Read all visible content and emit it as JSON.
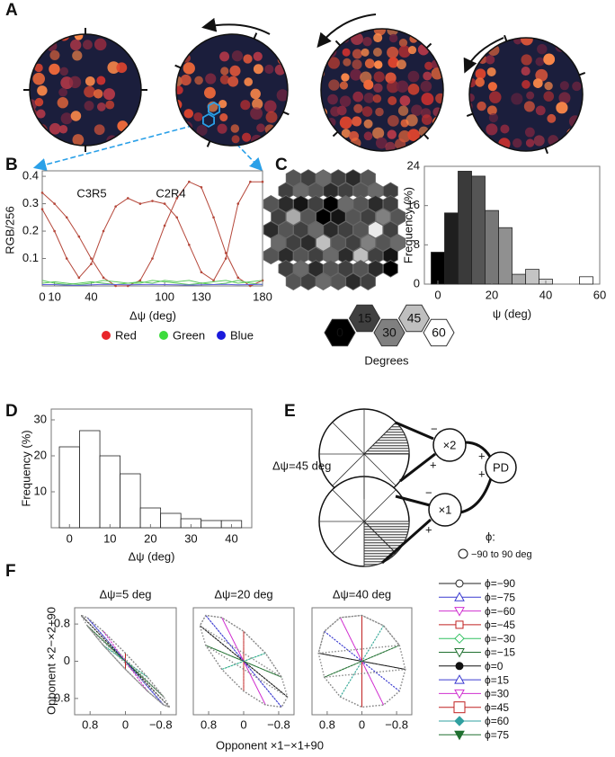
{
  "panel_labels": [
    "A",
    "B",
    "C",
    "D",
    "E",
    "F"
  ],
  "chart_data": [
    {
      "type": "line",
      "ylabel": "RGB/256",
      "xlabel": "Δψ (deg)",
      "xlim": [
        0,
        180
      ],
      "ylim": [
        0,
        0.42
      ],
      "xticks": [
        0,
        10,
        40,
        100,
        130,
        180
      ],
      "yticks": [
        0.1,
        0.2,
        0.3,
        0.4
      ],
      "x": [
        0,
        10,
        20,
        30,
        40,
        50,
        60,
        70,
        80,
        90,
        100,
        110,
        120,
        130,
        140,
        150,
        160,
        170,
        180
      ],
      "series": [
        {
          "name": "Red",
          "color": "#e8262a",
          "line_color": "#b5473a",
          "curves": [
            {
              "label": "C3R5",
              "values": [
                0.28,
                0.2,
                0.1,
                0.03,
                0.08,
                0.2,
                0.29,
                0.32,
                0.3,
                0.31,
                0.3,
                0.25,
                0.15,
                0.05,
                0.02,
                0.1,
                0.3,
                0.38,
                0.38
              ]
            },
            {
              "label": "C2R4",
              "values": [
                0.34,
                0.3,
                0.25,
                0.18,
                0.1,
                0.03,
                0.0,
                0.0,
                0.02,
                0.1,
                0.22,
                0.32,
                0.38,
                0.36,
                0.25,
                0.12,
                0.03,
                0.0,
                0.02
              ]
            }
          ]
        },
        {
          "name": "Green",
          "color": "#3ddc3d",
          "line_color": "#5cc95c",
          "curves": [
            {
              "values": [
                0.01,
                0.015,
                0.01,
                0.005,
                0.01,
                0.02,
                0.015,
                0.01,
                0.01,
                0.02,
                0.015,
                0.01,
                0.005,
                0.01,
                0.015,
                0.02,
                0.01,
                0.015,
                0.02
              ]
            },
            {
              "values": [
                0.02,
                0.01,
                0.005,
                0.01,
                0.015,
                0.01,
                0.005,
                0.01,
                0.015,
                0.01,
                0.02,
                0.015,
                0.02,
                0.01,
                0.005,
                0.01,
                0.02,
                0.01,
                0.005
              ]
            }
          ]
        },
        {
          "name": "Blue",
          "color": "#1a1adc",
          "line_color": "#6060e0",
          "curves": [
            {
              "values": [
                0.005,
                0.005,
                0.003,
                0.002,
                0.004,
                0.006,
                0.005,
                0.004,
                0.005,
                0.006,
                0.005,
                0.004,
                0.003,
                0.004,
                0.005,
                0.006,
                0.004,
                0.005,
                0.006
              ]
            }
          ]
        }
      ]
    },
    {
      "type": "hexmap",
      "legend_title": "Degrees",
      "scale": [
        0,
        15,
        30,
        45,
        60
      ],
      "rows": [
        [
          20,
          15,
          25,
          15,
          10,
          20
        ],
        [
          15,
          25,
          20,
          10,
          15,
          20,
          25,
          15
        ],
        [
          20,
          10,
          5,
          15,
          0,
          25,
          20,
          10,
          15
        ],
        [
          15,
          40,
          20,
          0,
          5,
          20,
          15,
          30,
          20
        ],
        [
          10,
          20,
          15,
          25,
          10,
          15,
          20,
          55,
          15
        ],
        [
          25,
          15,
          10,
          45,
          20,
          15,
          30,
          20,
          25
        ],
        [
          20,
          10,
          20,
          15,
          25,
          10,
          45,
          15,
          5
        ],
        [
          15,
          25,
          10,
          20,
          15,
          20,
          10,
          0
        ],
        [
          20,
          15,
          25,
          20,
          10,
          15
        ]
      ]
    },
    {
      "type": "histogram",
      "ylabel": "Frequency (%)",
      "xlabel": "ψ (deg)",
      "bins": [
        -2.5,
        2.5,
        7.5,
        12.5,
        17.5,
        22.5,
        27.5,
        32.5,
        37.5,
        42.5,
        47.5,
        52.5,
        57.5
      ],
      "values": [
        6.5,
        14.5,
        23,
        22,
        15,
        11.5,
        2,
        3,
        1,
        0,
        0,
        1.5
      ],
      "colors": [
        "#000000",
        "#1e1e1e",
        "#3a3a3a",
        "#555555",
        "#777777",
        "#909090",
        "#aaaaaa",
        "#c4c4c4",
        "#dcdcdc",
        "#eeeeee",
        "#f5f5f5",
        "#ffffff"
      ],
      "xlim": [
        -5,
        60
      ],
      "ylim": [
        0,
        24
      ],
      "xticks": [
        0,
        20,
        40,
        60
      ],
      "yticks": [
        0,
        8,
        16,
        24
      ]
    },
    {
      "type": "histogram",
      "ylabel": "Frequency (%)",
      "xlabel": "Δψ (deg)",
      "bins": [
        -2.5,
        2.5,
        7.5,
        12.5,
        17.5,
        22.5,
        27.5,
        32.5,
        37.5,
        42.5
      ],
      "values": [
        22.5,
        27,
        20,
        15,
        5.5,
        4,
        2.5,
        2,
        2
      ],
      "color": "#ffffff",
      "xlim": [
        -4.5,
        45
      ],
      "ylim": [
        0,
        33
      ],
      "xticks": [
        0,
        10,
        20,
        30,
        40
      ],
      "yticks": [
        10,
        20,
        30
      ]
    },
    {
      "type": "radial",
      "ylabel": "Opponent ×2−×2+90",
      "xlabel": "Opponent ×1−×1+90",
      "xlim": [
        1.15,
        -1.15
      ],
      "ylim": [
        -1.15,
        1.15
      ],
      "xticks": [
        0.8,
        0,
        {
          "value": -0.8,
          "label": "−0.8"
        }
      ],
      "yticks": [
        0.8,
        0,
        {
          "value": -0.8,
          "label": "−0.8"
        }
      ],
      "subplots": [
        {
          "title": "Δψ=5 deg"
        },
        {
          "title": "Δψ=20 deg"
        },
        {
          "title": "Δψ=40 deg"
        }
      ],
      "series": [
        {
          "name": "ϕ=−90",
          "color": "#222222",
          "marker": "circle",
          "ends": [
            [
              -1,
              -0.985
            ],
            [
              -1,
              -0.766
            ],
            [
              -1,
              -0.174
            ]
          ]
        },
        {
          "name": "ϕ=−75",
          "color": "#3a3ad0",
          "marker": "triangle",
          "ends": [
            [
              -0.866,
              -0.94
            ],
            [
              -0.866,
              -0.985
            ],
            [
              -0.866,
              -0.643
            ]
          ]
        },
        {
          "name": "ϕ=−60",
          "color": "#d030d0",
          "marker": "triangle-down",
          "ends": [
            [
              -0.5,
              -0.643
            ],
            [
              -0.5,
              -0.94
            ],
            [
              -0.5,
              -0.94
            ]
          ]
        },
        {
          "name": "ϕ=−45",
          "color": "#c02020",
          "marker": "square",
          "ends": [
            [
              0,
              -0.174
            ],
            [
              0,
              -0.643
            ],
            [
              0,
              -0.985
            ]
          ]
        },
        {
          "name": "ϕ=−30",
          "color": "#30c060",
          "marker": "diamond",
          "ends": [
            [
              0.5,
              0.342
            ],
            [
              0.5,
              -0.174
            ],
            [
              0.5,
              -0.766
            ]
          ]
        },
        {
          "name": "ϕ=−15",
          "color": "#207030",
          "marker": "triangle-down",
          "ends": [
            [
              0.866,
              0.766
            ],
            [
              0.866,
              0.342
            ],
            [
              0.866,
              -0.342
            ]
          ]
        },
        {
          "name": "ϕ=0",
          "color": "#111111",
          "marker": "circle-filled",
          "ends": [
            [
              1,
              0.985
            ],
            [
              1,
              0.766
            ],
            [
              1,
              0.174
            ]
          ]
        },
        {
          "name": "ϕ=15",
          "color": "#3a3ad0",
          "marker": "triangle",
          "ends": [
            [
              0.866,
              0.94
            ],
            [
              0.866,
              0.985
            ],
            [
              0.866,
              0.643
            ]
          ]
        },
        {
          "name": "ϕ=30",
          "color": "#d030d0",
          "marker": "triangle-down",
          "ends": [
            [
              0.5,
              0.643
            ],
            [
              0.5,
              0.94
            ],
            [
              0.5,
              0.94
            ]
          ]
        },
        {
          "name": "ϕ=45",
          "color": "#c02020",
          "marker": "square-big",
          "ends": [
            [
              0,
              0.174
            ],
            [
              0,
              0.643
            ],
            [
              0,
              0.985
            ]
          ]
        },
        {
          "name": "ϕ=60",
          "color": "#30a0a0",
          "marker": "diamond-filled",
          "ends": [
            [
              -0.5,
              -0.342
            ],
            [
              -0.5,
              0.174
            ],
            [
              -0.5,
              0.766
            ]
          ]
        },
        {
          "name": "ϕ=75",
          "color": "#207030",
          "marker": "triangle-down-filled",
          "ends": [
            [
              -0.866,
              -0.766
            ],
            [
              -0.866,
              -0.342
            ],
            [
              -0.866,
              0.342
            ]
          ]
        }
      ]
    }
  ],
  "diagram": {
    "delta_label": "Δψ=45 deg",
    "gain_top": "×2",
    "gain_bottom": "×1",
    "output": "PD",
    "minus": "−",
    "plus": "+",
    "phi": "ϕ:",
    "phi_range": "−90 to 90 deg"
  }
}
